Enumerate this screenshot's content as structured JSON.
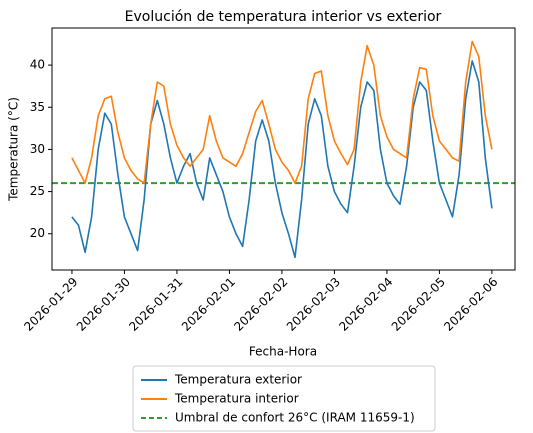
{
  "chart_data": {
    "type": "line",
    "title": "Evolución de temperatura interior vs exterior",
    "xlabel": "Fecha-Hora",
    "ylabel": "Temperatura (°C)",
    "x": [
      0,
      0.125,
      0.25,
      0.375,
      0.5,
      0.625,
      0.75,
      0.875,
      1,
      1.125,
      1.25,
      1.375,
      1.5,
      1.625,
      1.75,
      1.875,
      2,
      2.125,
      2.25,
      2.375,
      2.5,
      2.625,
      2.75,
      2.875,
      3,
      3.125,
      3.25,
      3.375,
      3.5,
      3.625,
      3.75,
      3.875,
      4,
      4.125,
      4.25,
      4.375,
      4.5,
      4.625,
      4.75,
      4.875,
      5,
      5.125,
      5.25,
      5.375,
      5.5,
      5.625,
      5.75,
      5.875,
      6,
      6.125,
      6.25,
      6.375,
      6.5,
      6.625,
      6.75,
      6.875,
      7,
      7.125,
      7.25,
      7.375,
      7.5,
      7.625,
      7.75,
      7.875,
      8
    ],
    "series": [
      {
        "name": "Temperatura exterior",
        "color": "#1f77b4",
        "values": [
          22,
          21,
          17.8,
          22,
          30,
          34.3,
          33,
          27,
          22,
          20,
          18,
          24,
          33,
          35.8,
          33,
          29,
          26,
          28,
          29.5,
          26,
          24,
          29,
          27,
          25,
          22,
          20,
          18.5,
          24,
          31,
          33.5,
          31,
          26,
          22.5,
          20,
          17.2,
          24,
          33,
          36,
          34,
          28,
          25,
          23.5,
          22.5,
          28,
          35,
          38,
          37,
          30,
          26,
          24.5,
          23.5,
          28,
          35,
          38,
          37,
          31,
          26,
          24,
          22,
          27,
          36,
          40.5,
          38,
          29,
          23
        ]
      },
      {
        "name": "Temperatura interior",
        "color": "#ff7f0e",
        "values": [
          29,
          27.5,
          26,
          29,
          34,
          36,
          36.3,
          32,
          29,
          27.5,
          26.5,
          26,
          33,
          38,
          37.5,
          33,
          30.5,
          29,
          28,
          29,
          30,
          34,
          31,
          29,
          28.5,
          28,
          29.5,
          32,
          34.5,
          35.8,
          33,
          30,
          28.5,
          27.5,
          26,
          28,
          36,
          39,
          39.3,
          34,
          31,
          29.5,
          28.2,
          30,
          38,
          42.3,
          40,
          34,
          31.5,
          30,
          29.5,
          29,
          36,
          39.7,
          39.5,
          34,
          31,
          30,
          29,
          28.6,
          38,
          42.8,
          41,
          34,
          30
        ]
      }
    ],
    "hlines": [
      {
        "name": "Umbral de confort 26°C (IRAM 11659-1)",
        "color": "#2ca02c",
        "value": 26,
        "style": "dashed"
      }
    ],
    "xlim": [
      -0.38,
      8.44
    ],
    "xticks": [
      {
        "value": 0,
        "label": "2026-01-29"
      },
      {
        "value": 1,
        "label": "2026-01-30"
      },
      {
        "value": 2,
        "label": "2026-01-31"
      },
      {
        "value": 3,
        "label": "2026-02-01"
      },
      {
        "value": 4,
        "label": "2026-02-02"
      },
      {
        "value": 5,
        "label": "2026-02-03"
      },
      {
        "value": 6,
        "label": "2026-02-04"
      },
      {
        "value": 7,
        "label": "2026-02-05"
      },
      {
        "value": 8,
        "label": "2026-02-06"
      }
    ],
    "ylim": [
      15.7,
      44.4
    ],
    "yticks": [
      20,
      25,
      30,
      35,
      40
    ],
    "grid": false,
    "legend": "bottom"
  }
}
